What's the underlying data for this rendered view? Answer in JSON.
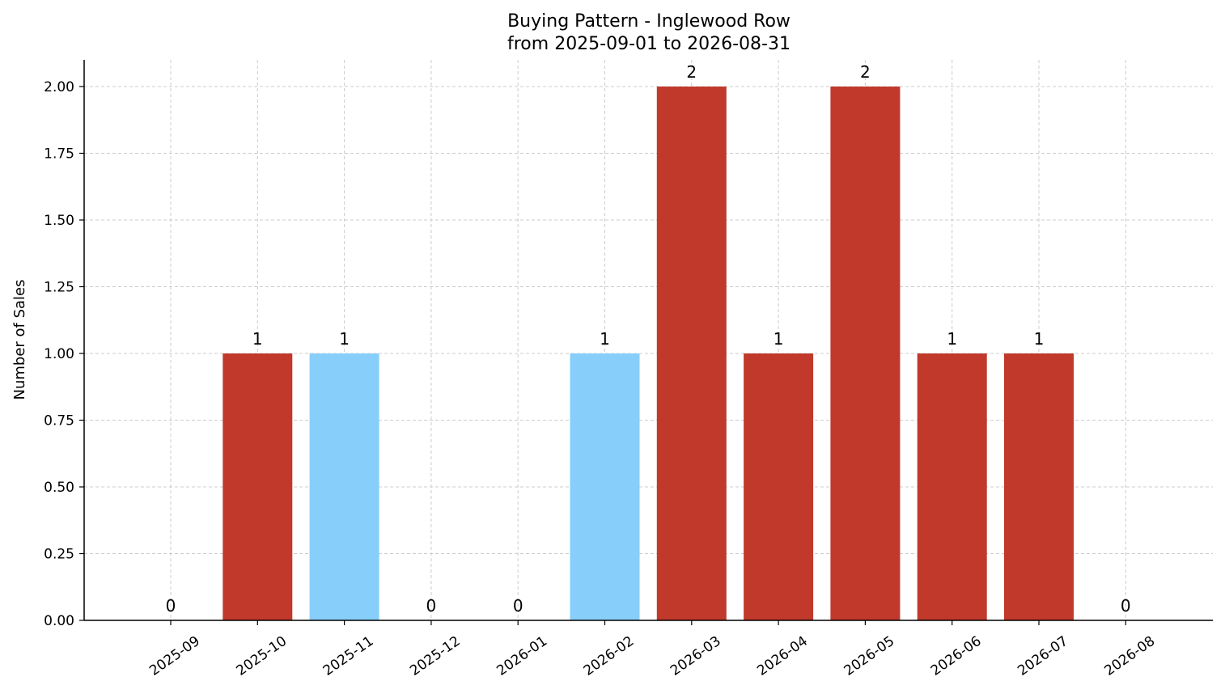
{
  "chart_data": {
    "type": "bar",
    "title": "Buying Pattern - Inglewood Row",
    "subtitle": "from 2025-09-01 to 2026-08-31",
    "xlabel": "",
    "ylabel": "Number of Sales",
    "categories": [
      "2025-09",
      "2025-10",
      "2025-11",
      "2025-12",
      "2026-01",
      "2026-02",
      "2026-03",
      "2026-04",
      "2026-05",
      "2026-06",
      "2026-07",
      "2026-08"
    ],
    "values": [
      0,
      1,
      1,
      0,
      0,
      1,
      2,
      1,
      2,
      1,
      1,
      0
    ],
    "value_labels": [
      "0",
      "1",
      "1",
      "0",
      "0",
      "1",
      "2",
      "1",
      "2",
      "1",
      "1",
      "0"
    ],
    "bar_colors": [
      "#c0392b",
      "#c0392b",
      "#87cefa",
      "#c0392b",
      "#c0392b",
      "#87cefa",
      "#c0392b",
      "#c0392b",
      "#c0392b",
      "#c0392b",
      "#c0392b",
      "#c0392b"
    ],
    "ylim": [
      0,
      2.1
    ],
    "yticks": [
      0,
      0.25,
      0.5,
      0.75,
      1.0,
      1.25,
      1.5,
      1.75,
      2.0
    ],
    "ytick_labels": [
      "0.00",
      "0.25",
      "0.50",
      "0.75",
      "1.00",
      "1.25",
      "1.50",
      "1.75",
      "2.00"
    ],
    "grid": true,
    "legend": "none"
  }
}
